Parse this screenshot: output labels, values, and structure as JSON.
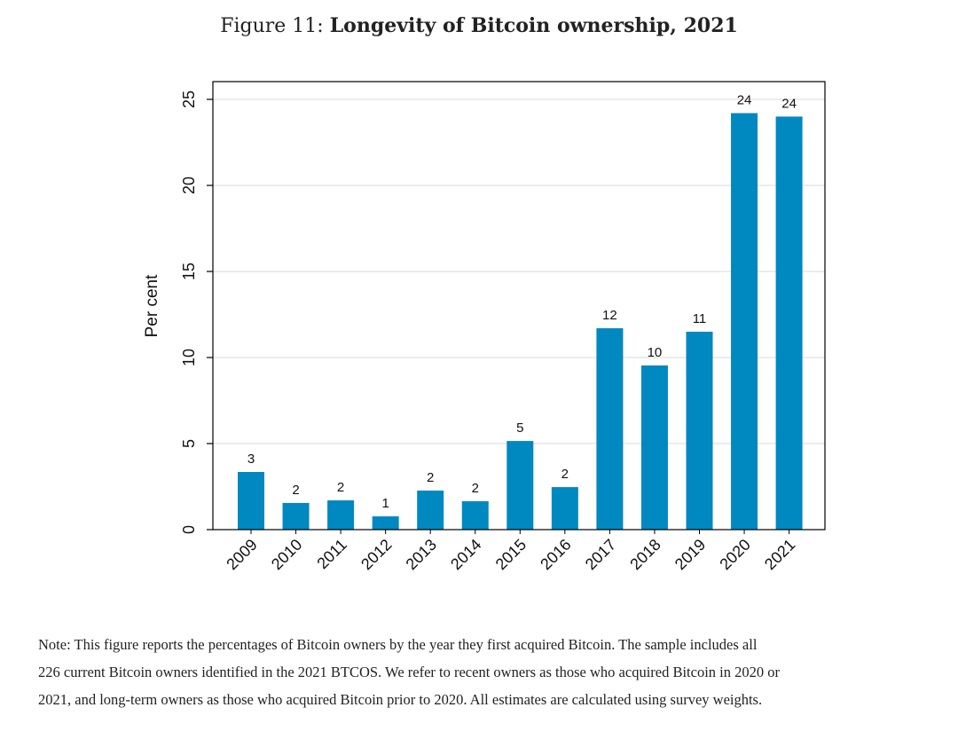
{
  "figure": {
    "label": "Figure 11:",
    "title": "Longevity of Bitcoin ownership, 2021"
  },
  "chart_data": {
    "type": "bar",
    "title": "Longevity of Bitcoin ownership, 2021",
    "xlabel": "",
    "ylabel": "Per cent",
    "ylim": [
      0,
      26
    ],
    "yticks": [
      0,
      5,
      10,
      15,
      20,
      25
    ],
    "grid": true,
    "bar_color": "#0088c0",
    "categories": [
      "2009",
      "2010",
      "2011",
      "2012",
      "2013",
      "2014",
      "2015",
      "2016",
      "2017",
      "2018",
      "2019",
      "2020",
      "2021"
    ],
    "values": [
      3.35,
      1.55,
      1.7,
      0.77,
      2.27,
      1.65,
      5.15,
      2.47,
      11.7,
      9.54,
      11.5,
      24.2,
      24.0
    ],
    "data_labels": [
      "3",
      "2",
      "2",
      "1",
      "2",
      "2",
      "5",
      "2",
      "12",
      "10",
      "11",
      "24",
      "24"
    ]
  },
  "note": {
    "lines": [
      "Note: This figure reports the percentages of Bitcoin owners by the year they first acquired Bitcoin. The sample includes all",
      "226 current Bitcoin owners identified in the 2021 BTCOS. We refer to recent owners as those who acquired Bitcoin in 2020 or",
      "2021, and long-term owners as those who acquired Bitcoin prior to 2020. All estimates are calculated using survey weights."
    ]
  }
}
